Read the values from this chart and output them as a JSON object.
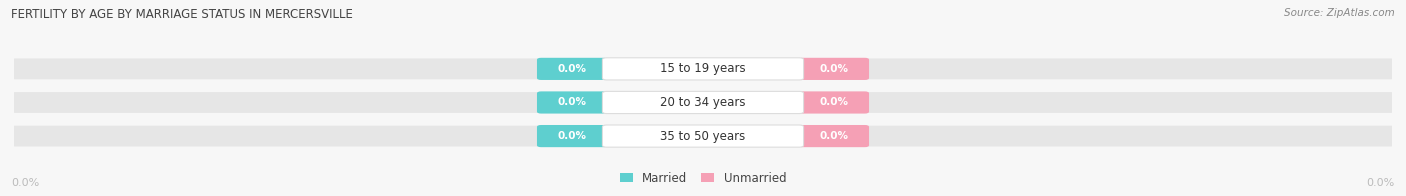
{
  "title": "FERTILITY BY AGE BY MARRIAGE STATUS IN MERCERSVILLE",
  "source": "Source: ZipAtlas.com",
  "age_groups": [
    "15 to 19 years",
    "20 to 34 years",
    "35 to 50 years"
  ],
  "married_values": [
    0.0,
    0.0,
    0.0
  ],
  "unmarried_values": [
    0.0,
    0.0,
    0.0
  ],
  "married_color": "#5ecfcf",
  "unmarried_color": "#f5a0b5",
  "bar_bg_color": "#e6e6e6",
  "label_bg_color": "#ffffff",
  "title_color": "#444444",
  "source_color": "#888888",
  "axis_label_color": "#bbbbbb",
  "background_color": "#f7f7f7",
  "figsize": [
    14.06,
    1.96
  ],
  "dpi": 100
}
